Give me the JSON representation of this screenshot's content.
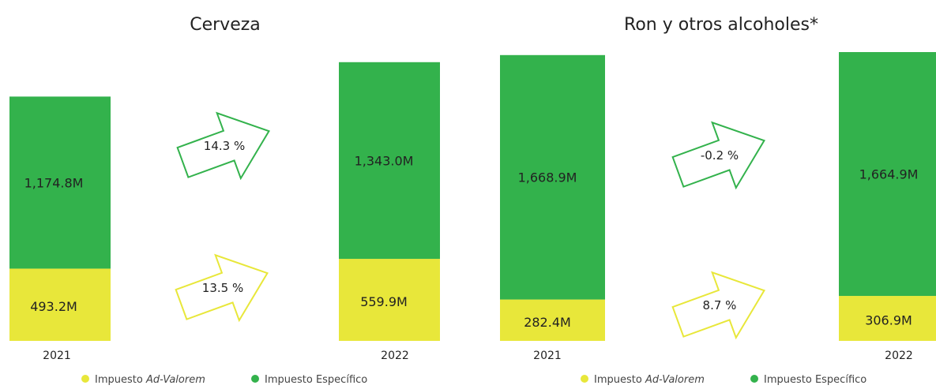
{
  "colors": {
    "ad_valorem": "#e8e73a",
    "especifico": "#33b24c",
    "text": "#222222"
  },
  "chart_data": [
    {
      "type": "bar",
      "stacked": true,
      "title": "Cerveza",
      "categories": [
        "2021",
        "2022"
      ],
      "series": [
        {
          "name": "Impuesto Ad-Valorem",
          "values": [
            493.2,
            559.9
          ],
          "labels": [
            "493.2M",
            "559.9M"
          ]
        },
        {
          "name": "Impuesto Específico",
          "values": [
            1174.8,
            1343.0
          ],
          "labels": [
            "1,174.8M",
            "1,343.0M"
          ]
        }
      ],
      "changes": {
        "especifico": "14.3 %",
        "ad_valorem": "13.5 %"
      },
      "legend": {
        "ad_valorem_prefix": "Impuesto ",
        "ad_valorem_italic": "Ad-Valorem",
        "especifico": "Impuesto Específico",
        "position": "bottom"
      }
    },
    {
      "type": "bar",
      "stacked": true,
      "title": "Ron y otros alcoholes*",
      "categories": [
        "2021",
        "2022"
      ],
      "series": [
        {
          "name": "Impuesto Ad-Valorem",
          "values": [
            282.4,
            306.9
          ],
          "labels": [
            "282.4M",
            "306.9M"
          ]
        },
        {
          "name": "Impuesto Específico",
          "values": [
            1668.9,
            1664.9
          ],
          "labels": [
            "1,668.9M",
            "1,664.9M"
          ]
        }
      ],
      "changes": {
        "especifico": "-0.2 %",
        "ad_valorem": "8.7 %"
      },
      "legend": {
        "ad_valorem_prefix": "Impuesto ",
        "ad_valorem_italic": "Ad-Valorem",
        "especifico": "Impuesto Específico",
        "position": "bottom"
      }
    }
  ]
}
